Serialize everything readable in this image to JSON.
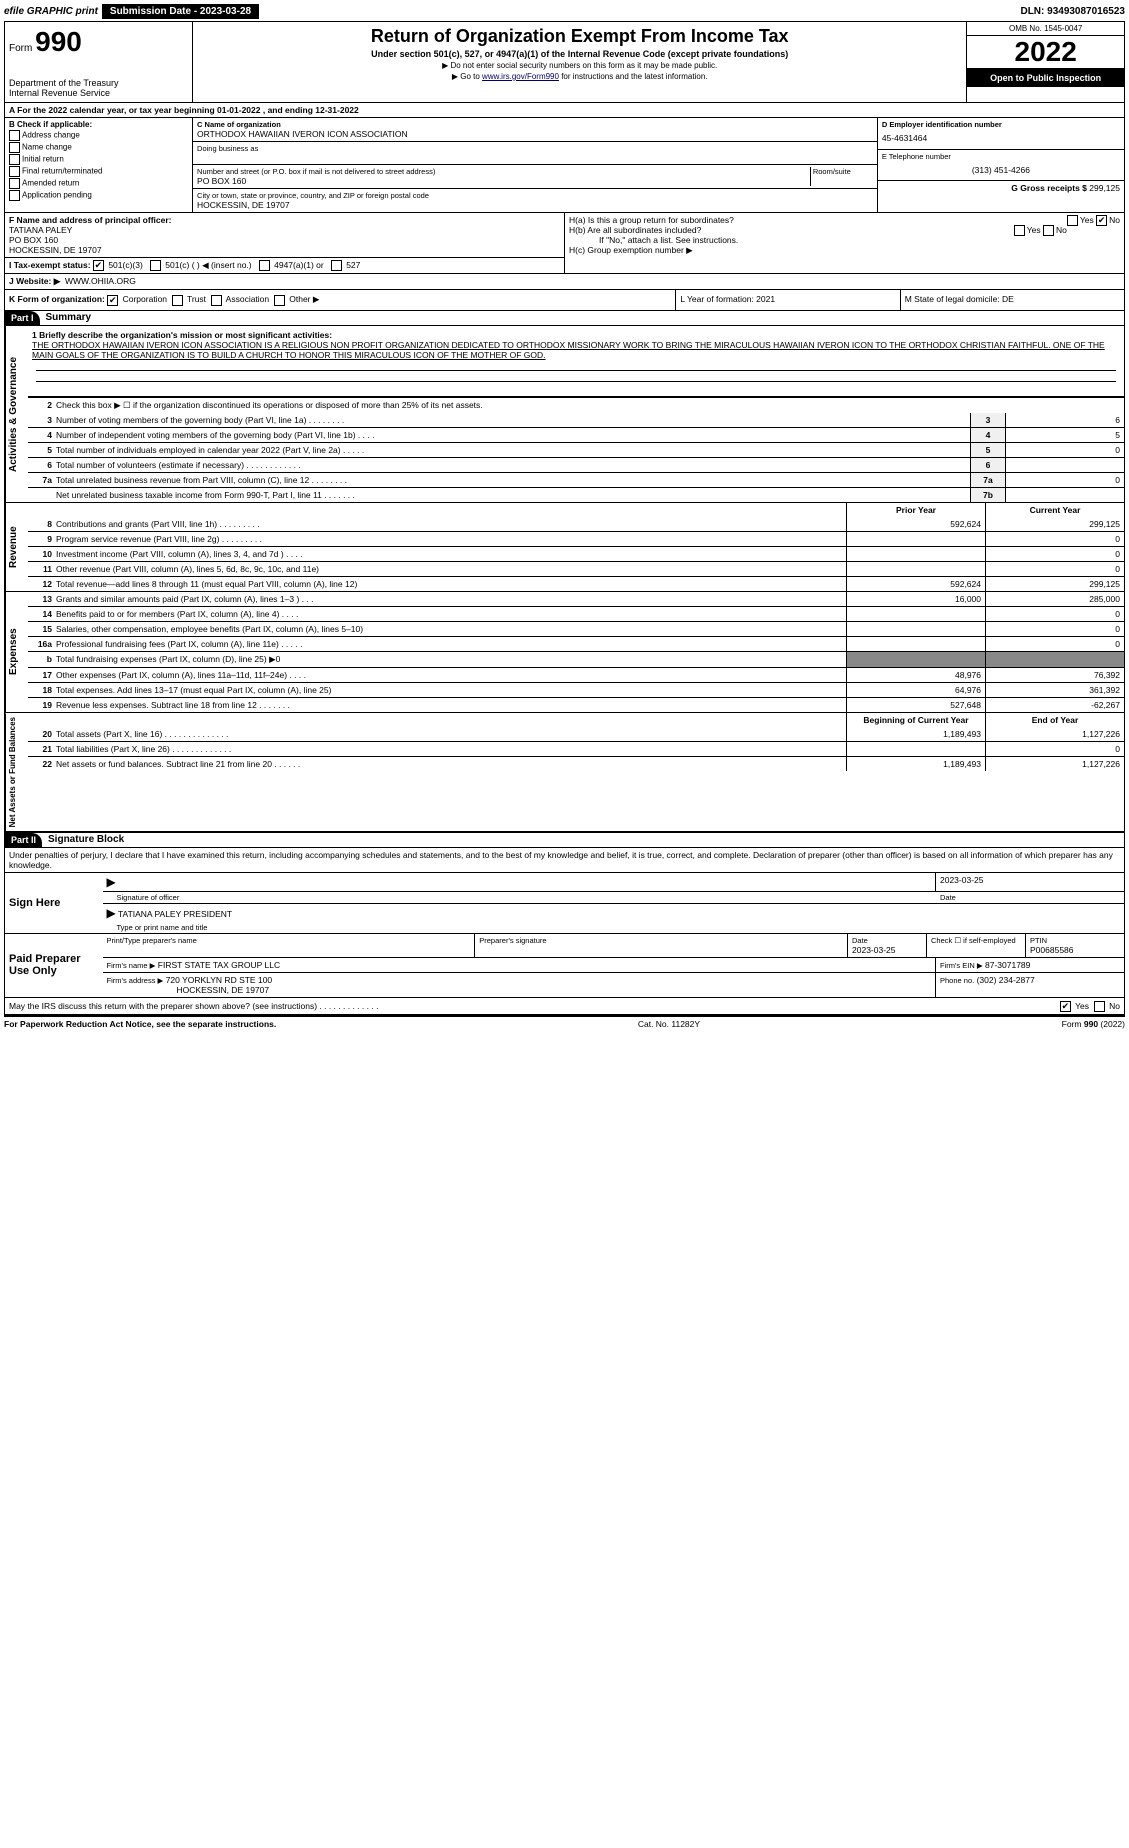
{
  "top": {
    "efile_label": "efile GRAPHIC print",
    "submission_label": "Submission Date - 2023-03-28",
    "dln": "DLN: 93493087016523"
  },
  "header": {
    "form_word": "Form",
    "form_number": "990",
    "dept": "Department of the Treasury",
    "irs": "Internal Revenue Service",
    "title": "Return of Organization Exempt From Income Tax",
    "sub1": "Under section 501(c), 527, or 4947(a)(1) of the Internal Revenue Code (except private foundations)",
    "sub2": "▶ Do not enter social security numbers on this form as it may be made public.",
    "sub3_pre": "▶ Go to ",
    "sub3_link": "www.irs.gov/Form990",
    "sub3_post": " for instructions and the latest information.",
    "omb": "OMB No. 1545-0047",
    "year": "2022",
    "open": "Open to Public Inspection"
  },
  "row_a": "A For the 2022 calendar year, or tax year beginning 01-01-2022    , and ending 12-31-2022",
  "box_b": {
    "label": "B Check if applicable:",
    "items": [
      "Address change",
      "Name change",
      "Initial return",
      "Final return/terminated",
      "Amended return",
      "Application pending"
    ]
  },
  "box_c": {
    "name_label": "C Name of organization",
    "name": "ORTHODOX HAWAIIAN IVERON ICON ASSOCIATION",
    "dba_label": "Doing business as",
    "addr_label": "Number and street (or P.O. box if mail is not delivered to street address)",
    "room_label": "Room/suite",
    "addr": "PO BOX 160",
    "city_label": "City or town, state or province, country, and ZIP or foreign postal code",
    "city": "HOCKESSIN, DE  19707"
  },
  "box_d": {
    "label": "D Employer identification number",
    "value": "45-4631464"
  },
  "box_e": {
    "label": "E Telephone number",
    "value": "(313) 451-4266"
  },
  "box_g": {
    "label": "G Gross receipts $",
    "value": "299,125"
  },
  "box_f": {
    "label": "F Name and address of principal officer:",
    "name": "TATIANA PALEY",
    "addr1": "PO BOX 160",
    "addr2": "HOCKESSIN, DE  19707"
  },
  "box_h": {
    "a_label": "H(a)  Is this a group return for subordinates?",
    "b_label": "H(b)  Are all subordinates included?",
    "note": "If \"No,\" attach a list. See instructions.",
    "c_label": "H(c)  Group exemption number ▶"
  },
  "row_i": {
    "label": "I   Tax-exempt status:",
    "opts": [
      "501(c)(3)",
      "501(c) (   ) ◀ (insert no.)",
      "4947(a)(1) or",
      "527"
    ]
  },
  "row_j": {
    "label": "J   Website: ▶",
    "value": "WWW.OHIIA.ORG"
  },
  "row_k": {
    "label": "K Form of organization:",
    "opts": [
      "Corporation",
      "Trust",
      "Association",
      "Other ▶"
    ],
    "l": "L Year of formation: 2021",
    "m": "M State of legal domicile: DE"
  },
  "part1": {
    "hdr": "Part I",
    "title": "Summary",
    "line1_label": "1  Briefly describe the organization's mission or most significant activities:",
    "line1_text": "THE ORTHODOX HAWAIIAN IVERON ICON ASSOCIATION IS A RELIGIOUS NON PROFIT ORGANIZATION DEDICATED TO ORTHODOX MISSIONARY WORK TO BRING THE MIRACULOUS HAWAIIAN IVERON ICON TO THE ORTHODOX CHRISTIAN FAITHFUL. ONE OF THE MAIN GOALS OF THE ORGANIZATION IS TO BUILD A CHURCH TO HONOR THIS MIRACULOUS ICON OF THE MOTHER OF GOD.",
    "line2": "Check this box ▶ ☐  if the organization discontinued its operations or disposed of more than 25% of its net assets.",
    "gov_rows": [
      {
        "n": "3",
        "t": "Number of voting members of the governing body (Part VI, line 1a)   .    .    .    .    .    .    .    .",
        "box": "3",
        "v": "6"
      },
      {
        "n": "4",
        "t": "Number of independent voting members of the governing body (Part VI, line 1b)   .   .   .   .",
        "box": "4",
        "v": "5"
      },
      {
        "n": "5",
        "t": "Total number of individuals employed in calendar year 2022 (Part V, line 2a)  .   .   .   .   .",
        "box": "5",
        "v": "0"
      },
      {
        "n": "6",
        "t": "Total number of volunteers (estimate if necessary)   .    .    .    .    .    .    .    .    .    .    .    .",
        "box": "6",
        "v": ""
      },
      {
        "n": "7a",
        "t": "Total unrelated business revenue from Part VIII, column (C), line 12   .   .   .   .   .   .   .   .",
        "box": "7a",
        "v": "0"
      },
      {
        "n": "",
        "t": "Net unrelated business taxable income from Form 990-T, Part I, line 11   .   .   .   .   .   .   .",
        "box": "7b",
        "v": ""
      }
    ],
    "col_prior": "Prior Year",
    "col_current": "Current Year",
    "rev_rows": [
      {
        "n": "8",
        "t": "Contributions and grants (Part VIII, line 1h)   .    .    .    .    .    .    .    .    .",
        "p": "592,624",
        "c": "299,125"
      },
      {
        "n": "9",
        "t": "Program service revenue (Part VIII, line 2g)    .    .    .    .    .    .    .    .    .",
        "p": "",
        "c": "0"
      },
      {
        "n": "10",
        "t": "Investment income (Part VIII, column (A), lines 3, 4, and 7d )    .    .    .    .",
        "p": "",
        "c": "0"
      },
      {
        "n": "11",
        "t": "Other revenue (Part VIII, column (A), lines 5, 6d, 8c, 9c, 10c, and 11e)",
        "p": "",
        "c": "0"
      },
      {
        "n": "12",
        "t": "Total revenue—add lines 8 through 11 (must equal Part VIII, column (A), line 12)",
        "p": "592,624",
        "c": "299,125"
      }
    ],
    "exp_rows": [
      {
        "n": "13",
        "t": "Grants and similar amounts paid (Part IX, column (A), lines 1–3 )   .    .    .",
        "p": "16,000",
        "c": "285,000"
      },
      {
        "n": "14",
        "t": "Benefits paid to or for members (Part IX, column (A), line 4)   .    .    .    .",
        "p": "",
        "c": "0"
      },
      {
        "n": "15",
        "t": "Salaries, other compensation, employee benefits (Part IX, column (A), lines 5–10)",
        "p": "",
        "c": "0"
      },
      {
        "n": "16a",
        "t": "Professional fundraising fees (Part IX, column (A), line 11e)    .    .    .    .    .",
        "p": "",
        "c": "0"
      },
      {
        "n": "b",
        "t": "Total fundraising expenses (Part IX, column (D), line 25) ▶0",
        "p": "shade",
        "c": "shade"
      },
      {
        "n": "17",
        "t": "Other expenses (Part IX, column (A), lines 11a–11d, 11f–24e)    .    .    .    .",
        "p": "48,976",
        "c": "76,392"
      },
      {
        "n": "18",
        "t": "Total expenses. Add lines 13–17 (must equal Part IX, column (A), line 25)",
        "p": "64,976",
        "c": "361,392"
      },
      {
        "n": "19",
        "t": "Revenue less expenses. Subtract line 18 from line 12  .    .    .    .    .    .    .",
        "p": "527,648",
        "c": "-62,267"
      }
    ],
    "col_begin": "Beginning of Current Year",
    "col_end": "End of Year",
    "net_rows": [
      {
        "n": "20",
        "t": "Total assets (Part X, line 16)  .    .    .    .    .    .    .    .    .    .    .    .    .    .",
        "p": "1,189,493",
        "c": "1,127,226"
      },
      {
        "n": "21",
        "t": "Total liabilities (Part X, line 26)   .    .    .    .    .    .    .    .    .    .    .    .    .",
        "p": "",
        "c": "0"
      },
      {
        "n": "22",
        "t": "Net assets or fund balances. Subtract line 21 from line 20  .    .    .    .    .    .",
        "p": "1,189,493",
        "c": "1,127,226"
      }
    ],
    "side_labels": {
      "gov": "Activities & Governance",
      "rev": "Revenue",
      "exp": "Expenses",
      "net": "Net Assets or Fund Balances"
    }
  },
  "part2": {
    "hdr": "Part II",
    "title": "Signature Block",
    "penalty": "Under penalties of perjury, I declare that I have examined this return, including accompanying schedules and statements, and to the best of my knowledge and belief, it is true, correct, and complete. Declaration of preparer (other than officer) is based on all information of which preparer has any knowledge.",
    "sign_here": "Sign Here",
    "sig_of_officer": "Signature of officer",
    "sig_date": "2023-03-25",
    "date_label": "Date",
    "officer_name": "TATIANA PALEY PRESIDENT",
    "type_name": "Type or print name and title",
    "paid": "Paid Preparer Use Only",
    "print_name_label": "Print/Type preparer's name",
    "prep_sig_label": "Preparer's signature",
    "date2_label": "Date",
    "date2": "2023-03-25",
    "check_label": "Check ☐ if self-employed",
    "ptin_label": "PTIN",
    "ptin": "P00685586",
    "firm_name_label": "Firm's name    ▶",
    "firm_name": "FIRST STATE TAX GROUP LLC",
    "firm_ein_label": "Firm's EIN ▶",
    "firm_ein": "87-3071789",
    "firm_addr_label": "Firm's address ▶",
    "firm_addr1": "720 YORKLYN RD STE 100",
    "firm_addr2": "HOCKESSIN, DE  19707",
    "phone_label": "Phone no.",
    "phone": "(302) 234-2877",
    "discuss": "May the IRS discuss this return with the preparer shown above? (see instructions)   .    .    .    .    .    .    .    .    .    .    .    .    .",
    "yes": "Yes",
    "no": "No"
  },
  "footer": {
    "left": "For Paperwork Reduction Act Notice, see the separate instructions.",
    "center": "Cat. No. 11282Y",
    "right": "Form 990 (2022)"
  },
  "glyphs": {
    "checked": "✔",
    "unchecked": ""
  }
}
